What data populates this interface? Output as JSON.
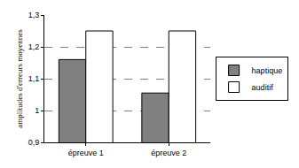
{
  "chart_data": {
    "type": "bar",
    "categories": [
      "épreuve 1",
      "épreuve 2"
    ],
    "series": [
      {
        "name": "haptique",
        "color": "#808080",
        "values": [
          1.16,
          1.055
        ]
      },
      {
        "name": "auditif",
        "color": "#ffffff",
        "values": [
          1.25,
          1.25
        ]
      }
    ],
    "y_label": "amplitudes d'erreurs moyennes",
    "ylim": [
      0.9,
      1.3
    ],
    "yticks": [
      {
        "value": 0.9,
        "label": "0,9"
      },
      1,
      {
        "value": 1.1,
        "label": "1,1"
      },
      {
        "value": 1.2,
        "label": "1,2"
      },
      {
        "value": 1.3,
        "label": "1,3"
      }
    ],
    "grid": true,
    "legend": "right"
  }
}
